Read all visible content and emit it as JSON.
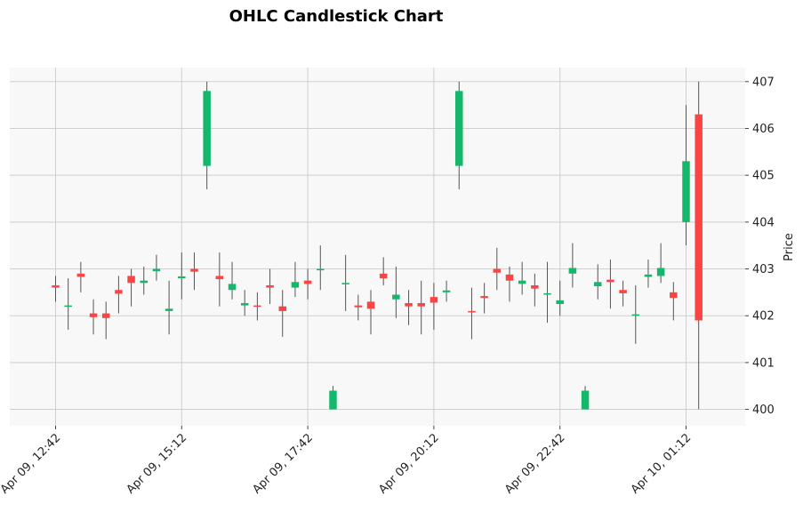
{
  "chart_data": {
    "type": "candlestick",
    "title": "OHLC Candlestick Chart",
    "ylabel": "Price",
    "xlabel": "",
    "ylim": [
      399.65,
      407.3
    ],
    "y_ticks": [
      400,
      401,
      402,
      403,
      404,
      405,
      406,
      407
    ],
    "x_tick_labels": [
      "Apr 09, 12:42",
      "Apr 09, 15:12",
      "Apr 09, 17:42",
      "Apr 09, 20:12",
      "Apr 09, 22:42",
      "Apr 10, 01:12"
    ],
    "x_tick_indices": [
      0,
      10,
      20,
      30,
      40,
      50
    ],
    "colors": {
      "up": "#15b86b",
      "down": "#fd4444",
      "wick": "#555555",
      "grid": "#cfcfcf",
      "background": "#f8f8f8"
    },
    "grid": true,
    "candles": [
      {
        "o": 402.65,
        "h": 402.85,
        "l": 402.3,
        "c": 402.6
      },
      {
        "o": 402.2,
        "h": 402.8,
        "l": 401.7,
        "c": 402.22
      },
      {
        "o": 402.9,
        "h": 403.15,
        "l": 402.5,
        "c": 402.83
      },
      {
        "o": 402.05,
        "h": 402.35,
        "l": 401.6,
        "c": 401.97
      },
      {
        "o": 402.05,
        "h": 402.3,
        "l": 401.5,
        "c": 401.95
      },
      {
        "o": 402.55,
        "h": 402.85,
        "l": 402.05,
        "c": 402.47
      },
      {
        "o": 402.85,
        "h": 403.0,
        "l": 402.2,
        "c": 402.7
      },
      {
        "o": 402.7,
        "h": 403.05,
        "l": 402.45,
        "c": 402.75
      },
      {
        "o": 402.95,
        "h": 403.3,
        "l": 402.75,
        "c": 403.0
      },
      {
        "o": 402.1,
        "h": 402.75,
        "l": 401.6,
        "c": 402.15
      },
      {
        "o": 402.8,
        "h": 403.35,
        "l": 402.35,
        "c": 402.84
      },
      {
        "o": 403.0,
        "h": 403.35,
        "l": 402.55,
        "c": 402.94
      },
      {
        "o": 405.2,
        "h": 407.0,
        "l": 404.7,
        "c": 406.8
      },
      {
        "o": 402.85,
        "h": 403.35,
        "l": 402.2,
        "c": 402.78
      },
      {
        "o": 402.55,
        "h": 403.15,
        "l": 402.35,
        "c": 402.68
      },
      {
        "o": 402.22,
        "h": 402.55,
        "l": 402.0,
        "c": 402.27
      },
      {
        "o": 402.22,
        "h": 402.5,
        "l": 401.9,
        "c": 402.19
      },
      {
        "o": 402.65,
        "h": 403.0,
        "l": 402.25,
        "c": 402.6
      },
      {
        "o": 402.2,
        "h": 402.55,
        "l": 401.55,
        "c": 402.1
      },
      {
        "o": 402.6,
        "h": 403.15,
        "l": 402.4,
        "c": 402.72
      },
      {
        "o": 402.75,
        "h": 403.0,
        "l": 402.35,
        "c": 402.68
      },
      {
        "o": 402.97,
        "h": 403.5,
        "l": 402.55,
        "c": 403.0
      },
      {
        "o": 400.0,
        "h": 400.5,
        "l": 400.0,
        "c": 400.4
      },
      {
        "o": 402.67,
        "h": 403.3,
        "l": 402.1,
        "c": 402.7
      },
      {
        "o": 402.22,
        "h": 402.45,
        "l": 401.9,
        "c": 402.18
      },
      {
        "o": 402.3,
        "h": 402.55,
        "l": 401.6,
        "c": 402.15
      },
      {
        "o": 402.9,
        "h": 403.25,
        "l": 402.65,
        "c": 402.8
      },
      {
        "o": 402.35,
        "h": 403.05,
        "l": 401.95,
        "c": 402.45
      },
      {
        "o": 402.27,
        "h": 402.55,
        "l": 401.8,
        "c": 402.2
      },
      {
        "o": 402.27,
        "h": 402.75,
        "l": 401.6,
        "c": 402.2
      },
      {
        "o": 402.4,
        "h": 402.7,
        "l": 401.7,
        "c": 402.28
      },
      {
        "o": 402.5,
        "h": 402.75,
        "l": 402.3,
        "c": 402.54
      },
      {
        "o": 405.2,
        "h": 407.0,
        "l": 404.7,
        "c": 406.8
      },
      {
        "o": 402.1,
        "h": 402.6,
        "l": 401.5,
        "c": 402.08
      },
      {
        "o": 402.42,
        "h": 402.7,
        "l": 402.05,
        "c": 402.38
      },
      {
        "o": 403.0,
        "h": 403.45,
        "l": 402.55,
        "c": 402.92
      },
      {
        "o": 402.88,
        "h": 403.05,
        "l": 402.3,
        "c": 402.75
      },
      {
        "o": 402.68,
        "h": 403.15,
        "l": 402.45,
        "c": 402.75
      },
      {
        "o": 402.65,
        "h": 402.9,
        "l": 402.2,
        "c": 402.58
      },
      {
        "o": 402.45,
        "h": 403.15,
        "l": 401.85,
        "c": 402.48
      },
      {
        "o": 402.25,
        "h": 402.75,
        "l": 402.0,
        "c": 402.33
      },
      {
        "o": 402.9,
        "h": 403.55,
        "l": 402.6,
        "c": 403.02
      },
      {
        "o": 400.0,
        "h": 400.5,
        "l": 400.0,
        "c": 400.4
      },
      {
        "o": 402.63,
        "h": 403.1,
        "l": 402.35,
        "c": 402.72
      },
      {
        "o": 402.77,
        "h": 403.2,
        "l": 402.15,
        "c": 402.72
      },
      {
        "o": 402.55,
        "h": 402.75,
        "l": 402.2,
        "c": 402.48
      },
      {
        "o": 402.01,
        "h": 402.65,
        "l": 401.4,
        "c": 402.03
      },
      {
        "o": 402.83,
        "h": 403.2,
        "l": 402.6,
        "c": 402.88
      },
      {
        "o": 402.85,
        "h": 403.55,
        "l": 402.7,
        "c": 403.02
      },
      {
        "o": 402.5,
        "h": 402.72,
        "l": 401.9,
        "c": 402.38
      },
      {
        "o": 404.0,
        "h": 406.5,
        "l": 403.5,
        "c": 405.3
      },
      {
        "o": 406.3,
        "h": 407.0,
        "l": 400.0,
        "c": 401.9
      }
    ]
  }
}
